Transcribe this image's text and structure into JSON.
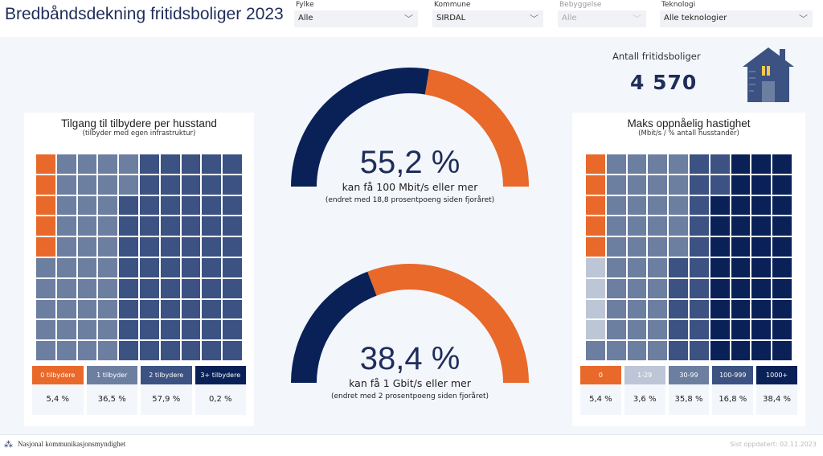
{
  "header": {
    "title": "Bredbåndsdekning fritidsboliger 2023"
  },
  "filters": [
    {
      "label": "Fylke",
      "value": "Alle",
      "disabled": false
    },
    {
      "label": "Kommune",
      "value": "SIRDAL",
      "disabled": false
    },
    {
      "label": "Bebyggelse",
      "value": "Alle",
      "disabled": true
    },
    {
      "label": "Teknologi",
      "value": "Alle teknologier",
      "disabled": false
    }
  ],
  "kpi": {
    "label": "Antall fritidsboliger",
    "value": "4 570",
    "icon": "house-icon"
  },
  "colors": {
    "orange": "#e8692a",
    "light": "#bcc6d6",
    "mid": "#6d7fa0",
    "dark": "#3b5282",
    "navy": "#0a2158"
  },
  "left": {
    "title": "Tilgang til tilbydere per husstand",
    "subtitle": "(tilbyder med egen infrastruktur)",
    "legend": [
      {
        "label": "0 tilbydere",
        "value": "5,4 %",
        "pct": 5.4,
        "color": "#e8692a"
      },
      {
        "label": "1 tilbyder",
        "value": "36,5 %",
        "pct": 36.5,
        "color": "#6d7fa0"
      },
      {
        "label": "2 tilbydere",
        "value": "57,9 %",
        "pct": 57.9,
        "color": "#3b5282"
      },
      {
        "label": "3+ tilbydere",
        "value": "0,2 %",
        "pct": 0.2,
        "color": "#0a2158"
      }
    ]
  },
  "right": {
    "title": "Maks oppnåelig hastighet",
    "subtitle": "(Mbit/s / % antall husstander)",
    "legend": [
      {
        "label": "0",
        "value": "5,4 %",
        "pct": 5.4,
        "color": "#e8692a"
      },
      {
        "label": "1-29",
        "value": "3,6 %",
        "pct": 3.6,
        "color": "#bcc6d6"
      },
      {
        "label": "30-99",
        "value": "35,8 %",
        "pct": 35.8,
        "color": "#6d7fa0"
      },
      {
        "label": "100-999",
        "value": "16,8 %",
        "pct": 16.8,
        "color": "#3b5282"
      },
      {
        "label": "1000+",
        "value": "38,4 %",
        "pct": 38.4,
        "color": "#0a2158"
      }
    ]
  },
  "gauges": [
    {
      "value": 55.2,
      "display": "55,2 %",
      "label": "kan få 100 Mbit/s eller mer",
      "change": "(endret med 18,8 prosentpoeng siden fjoråret)"
    },
    {
      "value": 38.4,
      "display": "38,4 %",
      "label": "kan få 1 Gbit/s eller mer",
      "change": "(endret med 2 prosentpoeng siden fjoråret)"
    }
  ],
  "footer": {
    "org": "Nasjonal kommunikasjonsmyndighet",
    "updated": "Sist oppdatert: 02.11.2023"
  }
}
